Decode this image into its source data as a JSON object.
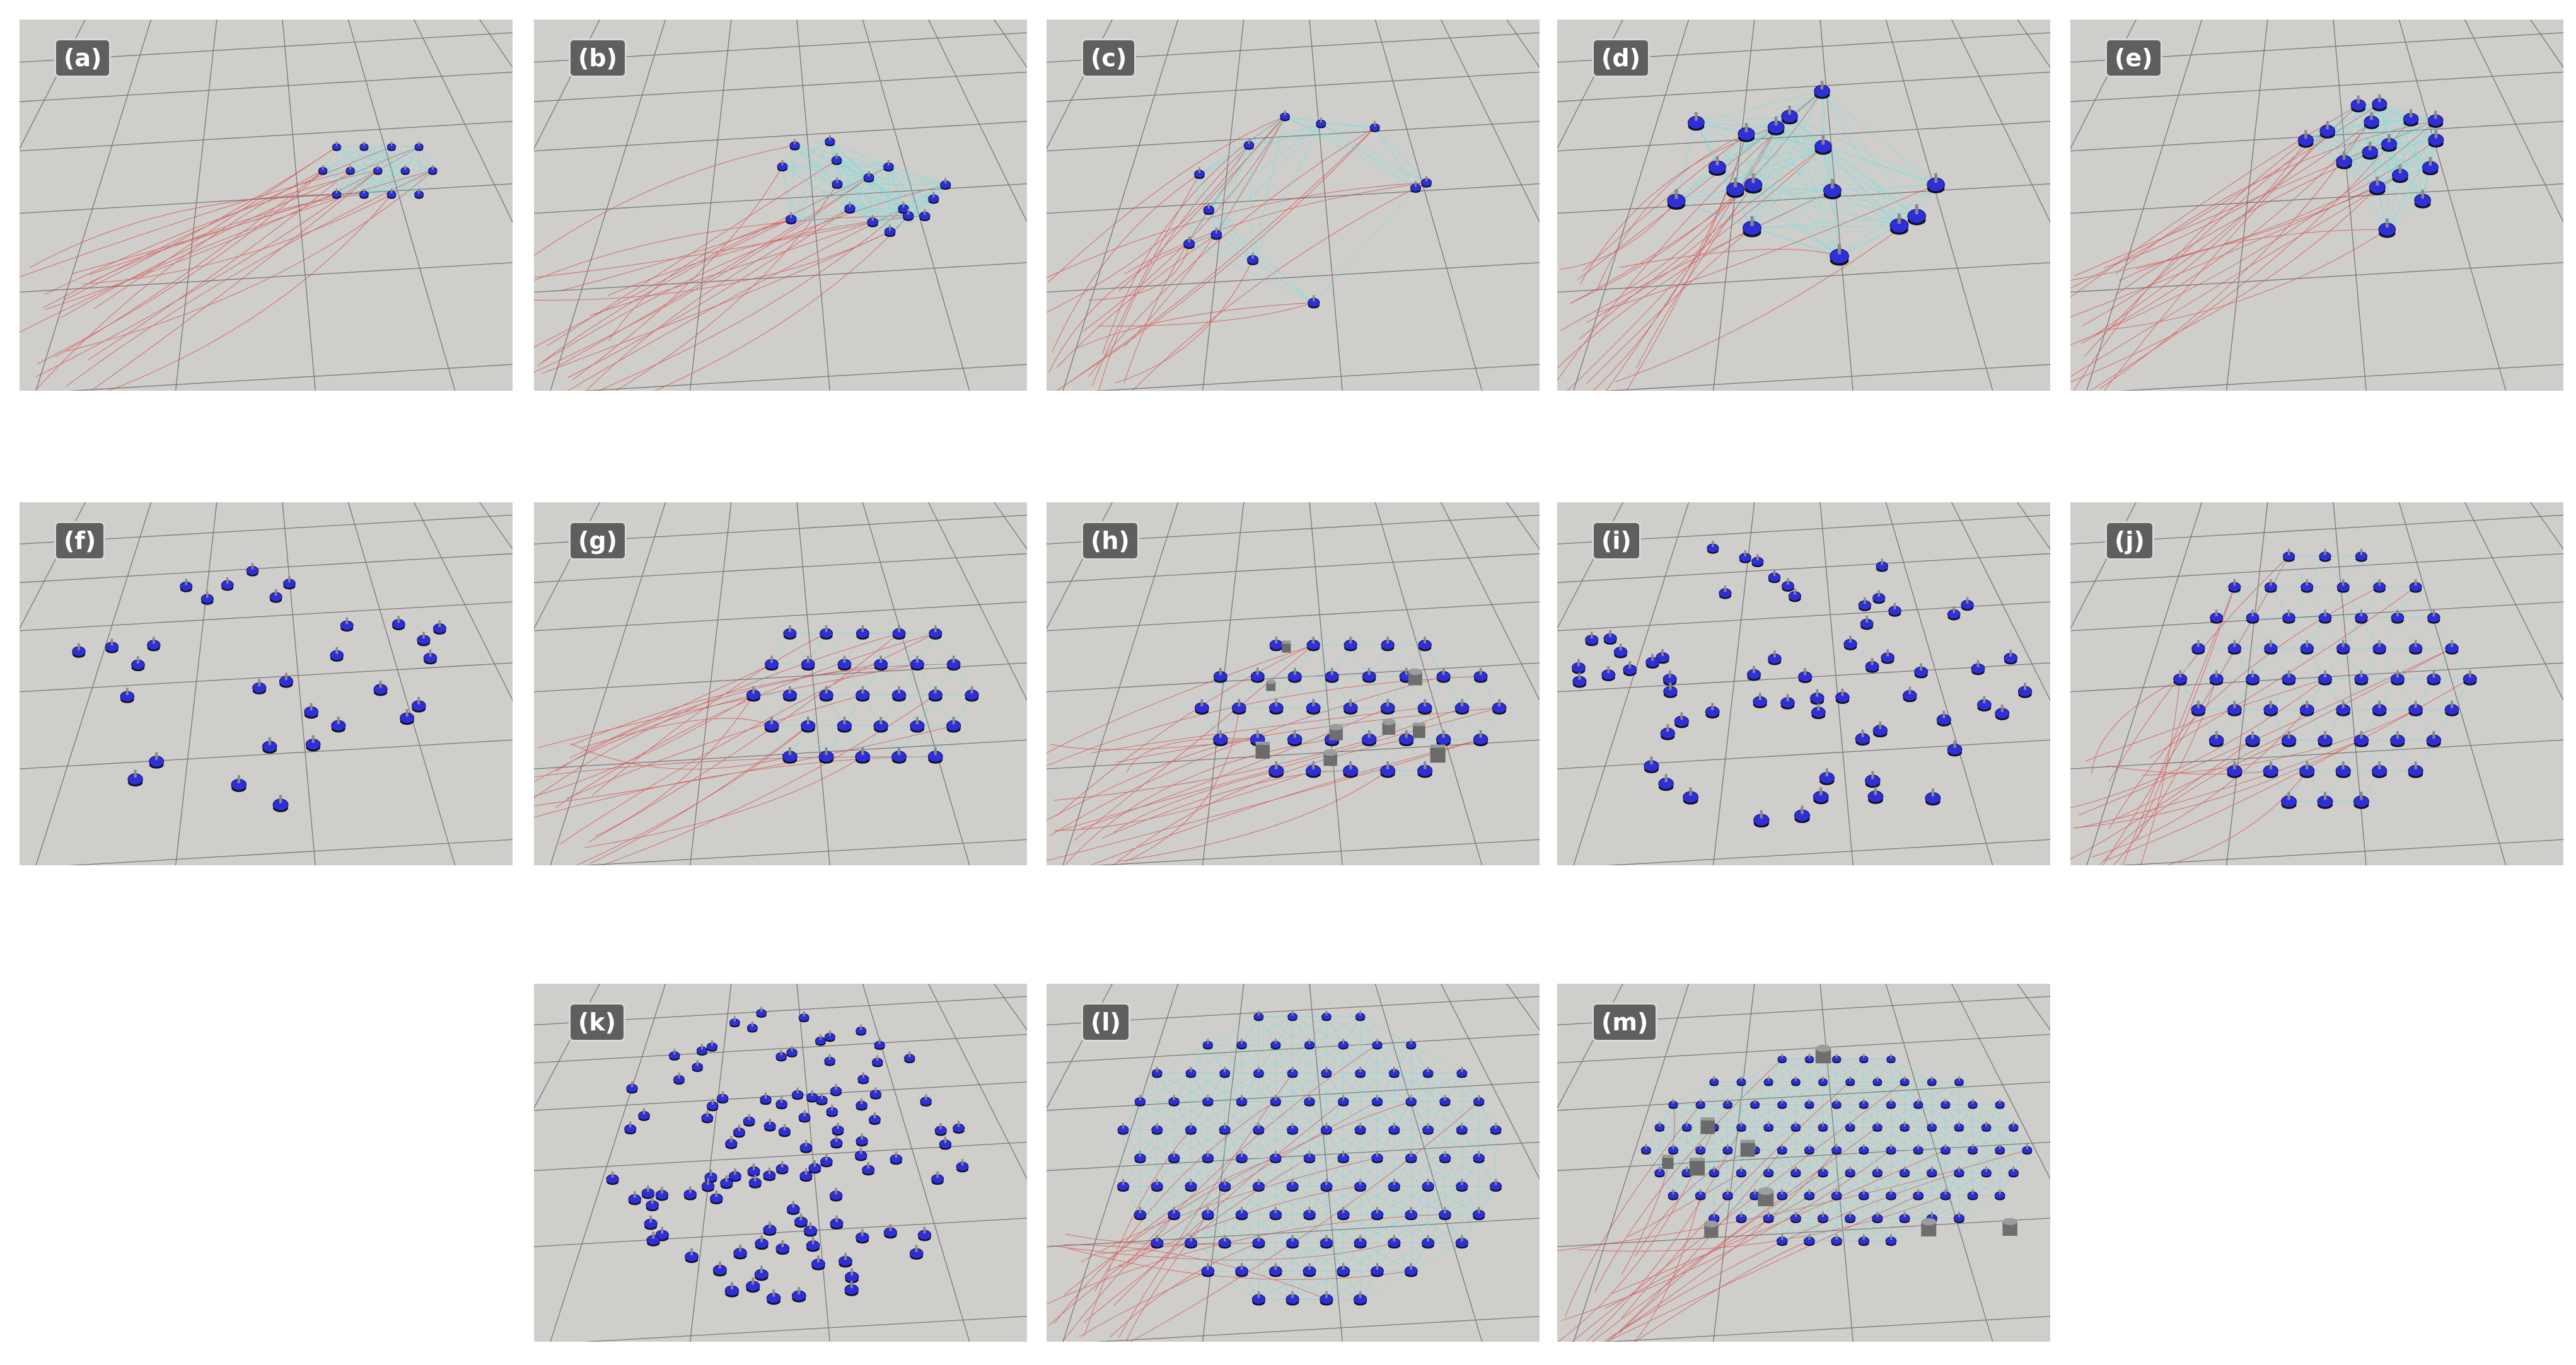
{
  "panels": [
    {
      "label": "(a)"
    },
    {
      "label": "(b)"
    },
    {
      "label": "(c)"
    },
    {
      "label": "(d)"
    },
    {
      "label": "(e)"
    },
    {
      "label": "(f)"
    },
    {
      "label": "(g)"
    },
    {
      "label": "(h)"
    },
    {
      "label": "(i)"
    },
    {
      "label": "(j)"
    },
    {
      "label": "(k)"
    },
    {
      "label": "(l)"
    },
    {
      "label": "(m)"
    }
  ]
}
